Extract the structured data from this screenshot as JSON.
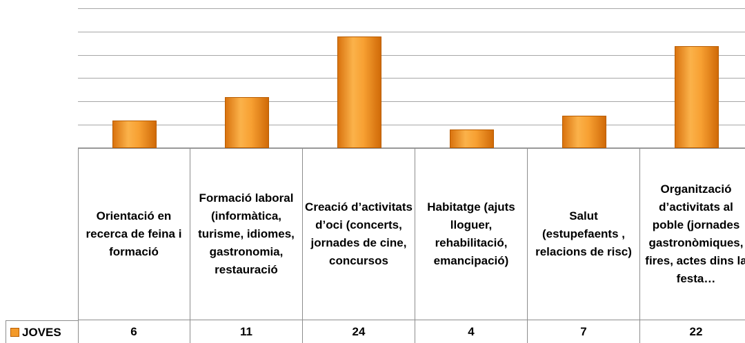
{
  "chart_data": {
    "type": "bar",
    "categories": [
      "Orientació en recerca de feina i formació",
      "Formació laboral (informàtica, turisme, idiomes, gastronomia, restauració",
      "Creació d’activitats d’oci (concerts, jornades de cine, concursos",
      "Habitatge (ajuts lloguer, rehabilitació, emancipació)",
      "Salut (estupefaents , relacions de risc)",
      "Organització d’activitats al poble (jornades gastronòmiques, fires, actes dins la festa…"
    ],
    "series": [
      {
        "name": "JOVES",
        "color": "#f39a2b",
        "values": [
          6,
          11,
          24,
          4,
          7,
          22
        ]
      }
    ],
    "ylim": [
      0,
      30
    ],
    "yticks": [
      0,
      5,
      10,
      15,
      20,
      25,
      30
    ],
    "grid": true
  }
}
